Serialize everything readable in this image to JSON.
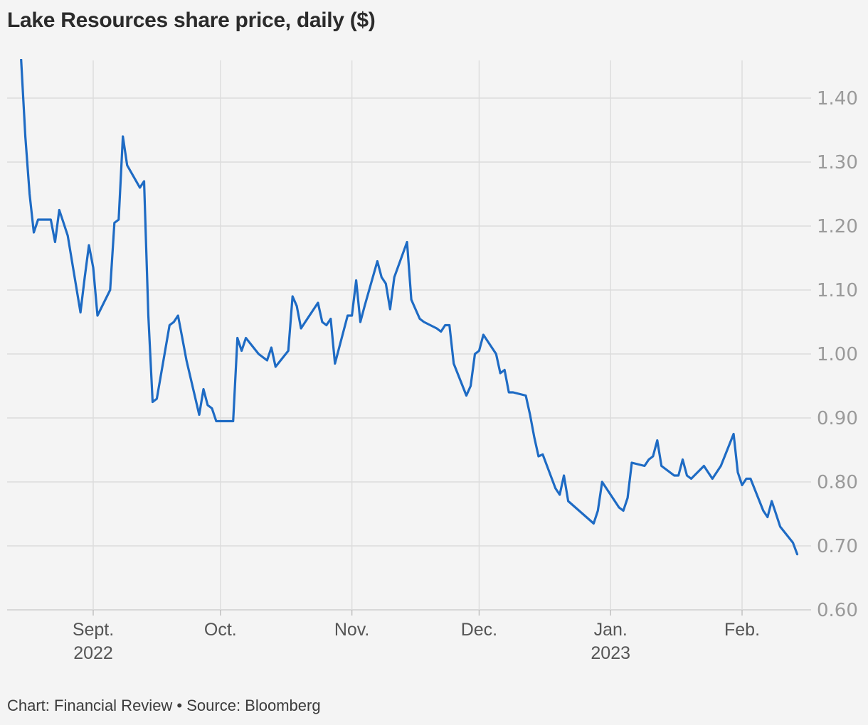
{
  "chart_data": {
    "type": "line",
    "title": "Lake Resources share price, daily ($)",
    "xlabel": "",
    "ylabel": "",
    "ylim": [
      0.6,
      1.45
    ],
    "y_ticks": [
      "1.40",
      "1.30",
      "1.20",
      "1.10",
      "1.00",
      "0.90",
      "0.80",
      "0.70",
      "0.60"
    ],
    "x_ticks": [
      {
        "date": "2022-09-01",
        "label": "Sept.",
        "sublabel": "2022"
      },
      {
        "date": "2022-10-01",
        "label": "Oct.",
        "sublabel": ""
      },
      {
        "date": "2022-11-01",
        "label": "Nov.",
        "sublabel": ""
      },
      {
        "date": "2022-12-01",
        "label": "Dec.",
        "sublabel": ""
      },
      {
        "date": "2023-01-01",
        "label": "Jan.",
        "sublabel": "2023"
      },
      {
        "date": "2023-02-01",
        "label": "Feb.",
        "sublabel": ""
      }
    ],
    "grid": true,
    "colors": {
      "line": "#1e6bc4",
      "grid": "#dcdcdc",
      "tick": "#9a9a9a"
    },
    "series": [
      {
        "name": "",
        "points": [
          [
            "2022-08-15",
            1.46
          ],
          [
            "2022-08-16",
            1.34
          ],
          [
            "2022-08-17",
            1.25
          ],
          [
            "2022-08-18",
            1.19
          ],
          [
            "2022-08-19",
            1.21
          ],
          [
            "2022-08-22",
            1.21
          ],
          [
            "2022-08-23",
            1.175
          ],
          [
            "2022-08-24",
            1.225
          ],
          [
            "2022-08-25",
            1.205
          ],
          [
            "2022-08-26",
            1.185
          ],
          [
            "2022-08-29",
            1.065
          ],
          [
            "2022-08-30",
            1.12
          ],
          [
            "2022-08-31",
            1.17
          ],
          [
            "2022-09-01",
            1.135
          ],
          [
            "2022-09-02",
            1.06
          ],
          [
            "2022-09-05",
            1.1
          ],
          [
            "2022-09-06",
            1.205
          ],
          [
            "2022-09-07",
            1.21
          ],
          [
            "2022-09-08",
            1.34
          ],
          [
            "2022-09-09",
            1.295
          ],
          [
            "2022-09-12",
            1.26
          ],
          [
            "2022-09-13",
            1.27
          ],
          [
            "2022-09-14",
            1.06
          ],
          [
            "2022-09-15",
            0.925
          ],
          [
            "2022-09-16",
            0.93
          ],
          [
            "2022-09-19",
            1.045
          ],
          [
            "2022-09-20",
            1.05
          ],
          [
            "2022-09-21",
            1.06
          ],
          [
            "2022-09-22",
            1.025
          ],
          [
            "2022-09-23",
            0.99
          ],
          [
            "2022-09-26",
            0.905
          ],
          [
            "2022-09-27",
            0.945
          ],
          [
            "2022-09-28",
            0.92
          ],
          [
            "2022-09-29",
            0.915
          ],
          [
            "2022-09-30",
            0.895
          ],
          [
            "2022-10-03",
            0.895
          ],
          [
            "2022-10-04",
            0.895
          ],
          [
            "2022-10-05",
            1.025
          ],
          [
            "2022-10-06",
            1.005
          ],
          [
            "2022-10-07",
            1.025
          ],
          [
            "2022-10-10",
            1.0
          ],
          [
            "2022-10-11",
            0.995
          ],
          [
            "2022-10-12",
            0.99
          ],
          [
            "2022-10-13",
            1.01
          ],
          [
            "2022-10-14",
            0.98
          ],
          [
            "2022-10-17",
            1.005
          ],
          [
            "2022-10-18",
            1.09
          ],
          [
            "2022-10-19",
            1.075
          ],
          [
            "2022-10-20",
            1.04
          ],
          [
            "2022-10-21",
            1.05
          ],
          [
            "2022-10-24",
            1.08
          ],
          [
            "2022-10-25",
            1.05
          ],
          [
            "2022-10-26",
            1.045
          ],
          [
            "2022-10-27",
            1.055
          ],
          [
            "2022-10-28",
            0.985
          ],
          [
            "2022-10-31",
            1.06
          ],
          [
            "2022-11-01",
            1.06
          ],
          [
            "2022-11-02",
            1.115
          ],
          [
            "2022-11-03",
            1.05
          ],
          [
            "2022-11-04",
            1.075
          ],
          [
            "2022-11-07",
            1.145
          ],
          [
            "2022-11-08",
            1.12
          ],
          [
            "2022-11-09",
            1.11
          ],
          [
            "2022-11-10",
            1.07
          ],
          [
            "2022-11-11",
            1.12
          ],
          [
            "2022-11-14",
            1.175
          ],
          [
            "2022-11-15",
            1.085
          ],
          [
            "2022-11-16",
            1.07
          ],
          [
            "2022-11-17",
            1.055
          ],
          [
            "2022-11-18",
            1.05
          ],
          [
            "2022-11-21",
            1.04
          ],
          [
            "2022-11-22",
            1.035
          ],
          [
            "2022-11-23",
            1.045
          ],
          [
            "2022-11-24",
            1.045
          ],
          [
            "2022-11-25",
            0.985
          ],
          [
            "2022-11-28",
            0.935
          ],
          [
            "2022-11-29",
            0.95
          ],
          [
            "2022-11-30",
            1.0
          ],
          [
            "2022-12-01",
            1.005
          ],
          [
            "2022-12-02",
            1.03
          ],
          [
            "2022-12-05",
            1.0
          ],
          [
            "2022-12-06",
            0.97
          ],
          [
            "2022-12-07",
            0.975
          ],
          [
            "2022-12-08",
            0.94
          ],
          [
            "2022-12-09",
            0.94
          ],
          [
            "2022-12-12",
            0.935
          ],
          [
            "2022-12-13",
            0.905
          ],
          [
            "2022-12-14",
            0.87
          ],
          [
            "2022-12-15",
            0.84
          ],
          [
            "2022-12-16",
            0.843
          ],
          [
            "2022-12-19",
            0.79
          ],
          [
            "2022-12-20",
            0.78
          ],
          [
            "2022-12-21",
            0.81
          ],
          [
            "2022-12-22",
            0.77
          ],
          [
            "2022-12-28",
            0.735
          ],
          [
            "2022-12-29",
            0.755
          ],
          [
            "2022-12-30",
            0.8
          ],
          [
            "2023-01-03",
            0.76
          ],
          [
            "2023-01-04",
            0.755
          ],
          [
            "2023-01-05",
            0.775
          ],
          [
            "2023-01-06",
            0.83
          ],
          [
            "2023-01-09",
            0.825
          ],
          [
            "2023-01-10",
            0.835
          ],
          [
            "2023-01-11",
            0.84
          ],
          [
            "2023-01-12",
            0.865
          ],
          [
            "2023-01-13",
            0.825
          ],
          [
            "2023-01-16",
            0.81
          ],
          [
            "2023-01-17",
            0.81
          ],
          [
            "2023-01-18",
            0.835
          ],
          [
            "2023-01-19",
            0.81
          ],
          [
            "2023-01-20",
            0.805
          ],
          [
            "2023-01-23",
            0.825
          ],
          [
            "2023-01-24",
            0.815
          ],
          [
            "2023-01-25",
            0.805
          ],
          [
            "2023-01-27",
            0.825
          ],
          [
            "2023-01-30",
            0.875
          ],
          [
            "2023-01-31",
            0.815
          ],
          [
            "2023-02-01",
            0.795
          ],
          [
            "2023-02-02",
            0.805
          ],
          [
            "2023-02-03",
            0.805
          ],
          [
            "2023-02-06",
            0.755
          ],
          [
            "2023-02-07",
            0.745
          ],
          [
            "2023-02-08",
            0.77
          ],
          [
            "2023-02-09",
            0.75
          ],
          [
            "2023-02-10",
            0.73
          ],
          [
            "2023-02-13",
            0.705
          ],
          [
            "2023-02-14",
            0.687
          ]
        ]
      }
    ]
  },
  "footer": "Chart: Financial Review • Source: Bloomberg"
}
